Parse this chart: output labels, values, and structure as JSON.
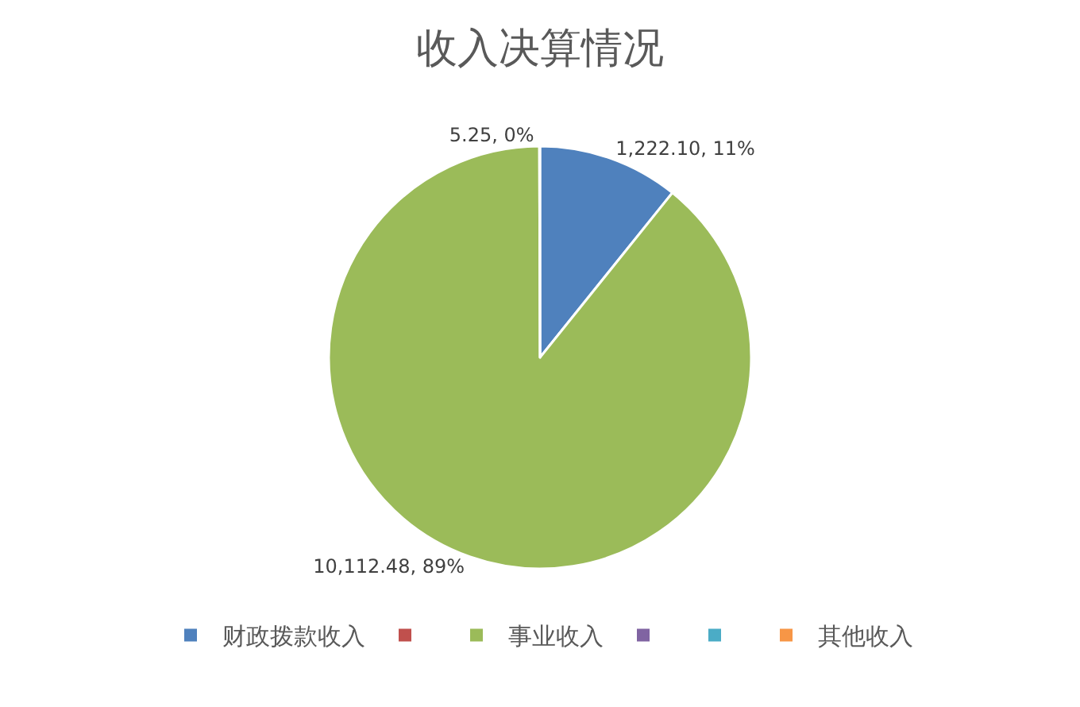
{
  "chart_data": {
    "type": "pie",
    "title": "收入决算情况",
    "categories": [
      "财政拨款收入",
      null,
      "事业收入",
      null,
      null,
      "其他收入"
    ],
    "values": [
      1222.1,
      null,
      10112.48,
      null,
      null,
      5.25
    ],
    "colors": [
      "#4f81bd",
      "#c0504d",
      "#9bbb59",
      "#8064a2",
      "#4bacc6",
      "#f79646"
    ],
    "value_labels": [
      "1,222.10, 11%",
      null,
      "10,112.48, 89%",
      null,
      null,
      "5.25, 0%"
    ],
    "legend": "bottom"
  }
}
